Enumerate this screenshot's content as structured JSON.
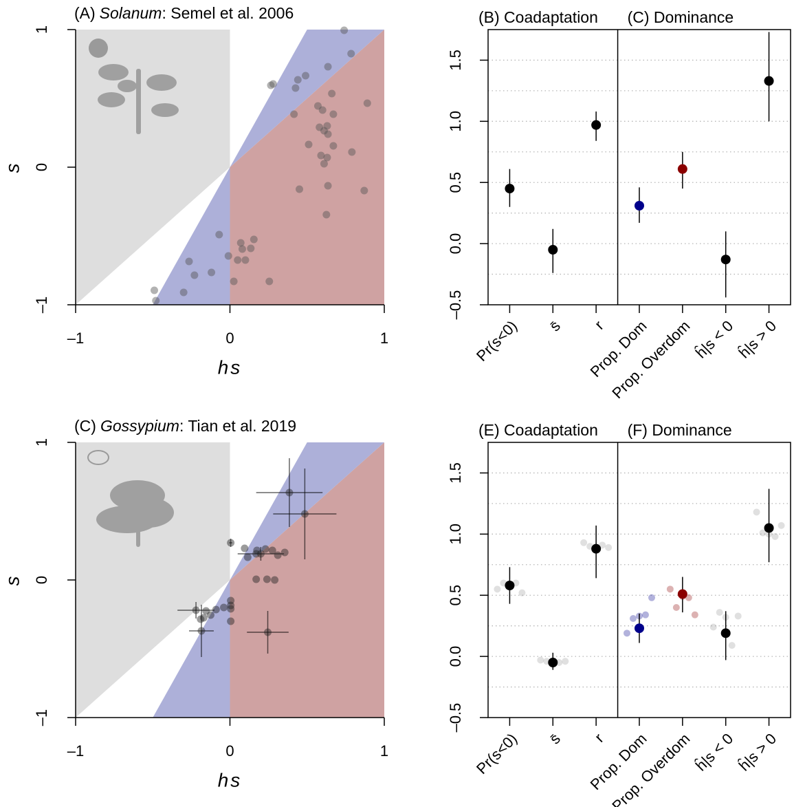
{
  "chart_data": [
    {
      "type": "scatter",
      "title_label": "(A)",
      "title_genus": "Solanum",
      "title_source": ": Semel et al. 2006",
      "xlabel": "hs",
      "ylabel": "s",
      "color": "#555555",
      "xlim": [
        -1,
        1
      ],
      "ylim": [
        -1,
        1
      ],
      "xticks": [
        {
          "value": -1,
          "label": "–1"
        },
        0,
        1
      ],
      "yticks": [
        {
          "value": -1,
          "label": "–1"
        },
        0,
        1
      ],
      "x": [
        -0.49,
        -0.48,
        -0.3,
        -0.265,
        -0.23,
        -0.12,
        -0.07,
        -0.01,
        0.025,
        0.07,
        0.08,
        0.1,
        0.135,
        0.155,
        0.05,
        0.255,
        0.265,
        0.28,
        0.425,
        0.44,
        0.49,
        0.635,
        0.74,
        0.785,
        0.66,
        0.89,
        0.57,
        0.6,
        0.67,
        0.415,
        0.58,
        0.63,
        0.61,
        0.635,
        0.51,
        0.67,
        0.79,
        0.59,
        0.63,
        0.61,
        0.45,
        0.635,
        0.87,
        0.625
      ],
      "values": [
        -0.895,
        -0.97,
        -0.91,
        -0.685,
        -0.785,
        -0.765,
        -0.49,
        -0.645,
        -0.83,
        -0.55,
        -0.595,
        -0.675,
        -0.59,
        -0.525,
        -0.675,
        -0.83,
        0.595,
        0.605,
        0.575,
        0.635,
        0.665,
        0.73,
        0.995,
        0.825,
        0.535,
        0.465,
        0.445,
        0.415,
        0.385,
        0.385,
        0.29,
        0.3,
        0.265,
        0.24,
        0.165,
        0.155,
        0.11,
        0.085,
        0.07,
        0.025,
        -0.16,
        -0.135,
        -0.17,
        -0.345
      ]
    },
    {
      "type": "dotplot",
      "titles": [
        "(B) Coadaptation",
        "(C) Dominance"
      ],
      "categories": [
        "Pr(s<0)",
        "s̄",
        "r",
        "Prop. Dom",
        "Prop. Overdom",
        "ĥ|s < 0",
        "ĥ|s > 0"
      ],
      "label_colors": [
        "#000000",
        "#000000",
        "#000000",
        "#7a7ac8",
        "#c07070",
        "#000000",
        "#000000"
      ],
      "point_colors": [
        "#000000",
        "#000000",
        "#000000",
        "#00008b",
        "#8b0000",
        "#000000",
        "#000000"
      ],
      "values": [
        0.45,
        -0.05,
        0.97,
        0.31,
        0.61,
        -0.13,
        1.33
      ],
      "lower": [
        0.3,
        -0.24,
        0.84,
        0.17,
        0.45,
        -0.44,
        1.0
      ],
      "upper": [
        0.61,
        0.12,
        1.08,
        0.46,
        0.75,
        0.1,
        1.73
      ],
      "ylim": [
        -0.5,
        1.75
      ],
      "yticks": [
        {
          "value": -0.5,
          "label": "–0.5"
        },
        {
          "value": 0,
          "label": "0.0"
        },
        0.5,
        {
          "value": 1,
          "label": "1.0"
        },
        1.5
      ],
      "gridlines": [
        -0.25,
        0,
        0.25,
        0.5,
        0.75,
        1,
        1.25,
        1.5
      ],
      "grid": true
    },
    {
      "type": "scatter",
      "title_label": "(C)",
      "title_genus": "Gossypium",
      "title_source": ": Tian et al. 2019",
      "xlabel": "hs",
      "ylabel": "s",
      "color": "#222222",
      "xlim": [
        -1,
        1
      ],
      "ylim": [
        -1,
        1
      ],
      "xticks": [
        {
          "value": -1,
          "label": "–1"
        },
        0,
        1
      ],
      "yticks": [
        {
          "value": -1,
          "label": "–1"
        },
        0,
        1
      ],
      "x": [
        0.385,
        0.485,
        0.245,
        0.005,
        0.095,
        0.115,
        0.17,
        0.175,
        0.2,
        0.23,
        0.275,
        0.31,
        0.355,
        0.17,
        0.24,
        0.29,
        0.005,
        0.005,
        0.005,
        0.005,
        -0.04,
        -0.09,
        -0.155,
        -0.125,
        -0.17,
        -0.185,
        -0.22,
        -0.19
      ],
      "values": [
        0.635,
        0.48,
        -0.38,
        0.27,
        0.23,
        0.165,
        0.19,
        0.215,
        0.19,
        0.225,
        0.215,
        0.18,
        0.2,
        0.005,
        0.005,
        0,
        -0.15,
        -0.185,
        -0.21,
        -0.3,
        -0.2,
        -0.215,
        -0.225,
        -0.255,
        -0.275,
        -0.37,
        -0.22,
        -0.285
      ],
      "errors": [
        {
          "x": 0.385,
          "y": 0.635,
          "xerr": 0.215,
          "yerr": 0.25
        },
        {
          "x": 0.485,
          "y": 0.48,
          "xerr": 0.205,
          "yerr": 0.33
        },
        {
          "x": 0.245,
          "y": -0.38,
          "xerr": 0.135,
          "yerr": 0.155
        },
        {
          "x": -0.185,
          "y": -0.37,
          "xerr": 0.08,
          "yerr": 0.19
        },
        {
          "x": -0.22,
          "y": -0.22,
          "xerr": 0.12,
          "yerr": 0.06
        },
        {
          "x": 0.2,
          "y": 0.19,
          "xerr": 0.15,
          "yerr": 0.05
        },
        {
          "x": 0.005,
          "y": 0.27,
          "xerr": 0.01,
          "yerr": 0.03
        }
      ]
    },
    {
      "type": "dotplot",
      "titles": [
        "(E) Coadaptation",
        "(F) Dominance"
      ],
      "categories": [
        "Pr(s<0)",
        "s̄",
        "r",
        "Prop. Dom",
        "Prop. Overdom",
        "ĥ|s < 0",
        "ĥ|s > 0"
      ],
      "label_colors": [
        "#000000",
        "#000000",
        "#000000",
        "#7a7ac8",
        "#c07070",
        "#000000",
        "#000000"
      ],
      "point_colors": [
        "#000000",
        "#000000",
        "#000000",
        "#00008b",
        "#8b0000",
        "#000000",
        "#000000"
      ],
      "values": [
        0.58,
        -0.05,
        0.88,
        0.23,
        0.51,
        0.19,
        1.05
      ],
      "lower": [
        0.43,
        -0.11,
        0.64,
        0.11,
        0.36,
        -0.03,
        0.77
      ],
      "upper": [
        0.73,
        0.03,
        1.07,
        0.35,
        0.65,
        0.37,
        1.37
      ],
      "replicates": [
        [
          0.55,
          0.6,
          0.58,
          0.6,
          0.52
        ],
        [
          -0.03,
          -0.04,
          -0.06,
          -0.05,
          -0.04
        ],
        [
          0.93,
          0.9,
          0.88,
          0.91,
          0.89
        ],
        [
          0.19,
          0.31,
          0.33,
          0.34,
          0.48
        ],
        [
          0.55,
          0.4,
          0.49,
          0.48,
          0.34
        ],
        [
          0.24,
          0.36,
          0.32,
          0.09,
          0.33
        ],
        [
          1.18,
          1.01,
          1.0,
          0.98,
          1.07
        ]
      ],
      "ylim": [
        -0.5,
        1.75
      ],
      "yticks": [
        {
          "value": -0.5,
          "label": "–0.5"
        },
        {
          "value": 0,
          "label": "0.0"
        },
        0.5,
        {
          "value": 1,
          "label": "1.0"
        },
        1.5
      ],
      "gridlines": [
        -0.25,
        0,
        0.25,
        0.5,
        0.75,
        1,
        1.25,
        1.5
      ],
      "grid": true
    }
  ]
}
